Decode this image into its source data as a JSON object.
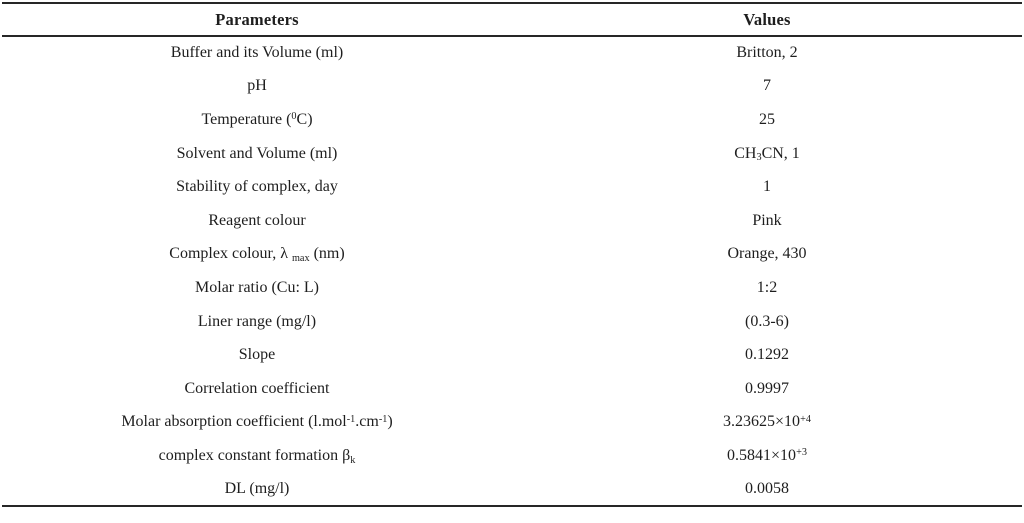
{
  "table": {
    "headers": {
      "param": "Parameters",
      "value": "Values"
    },
    "rows": [
      {
        "param": [
          {
            "t": "Buffer and its Volume (ml)"
          }
        ],
        "value": [
          {
            "t": "Britton, 2"
          }
        ]
      },
      {
        "param": [
          {
            "t": "pH"
          }
        ],
        "value": [
          {
            "t": "7"
          }
        ]
      },
      {
        "param": [
          {
            "t": "Temperature ("
          },
          {
            "t": "0",
            "s": "sup"
          },
          {
            "t": "C)"
          }
        ],
        "value": [
          {
            "t": "25"
          }
        ]
      },
      {
        "param": [
          {
            "t": "Solvent and Volume (ml)"
          }
        ],
        "value": [
          {
            "t": "CH"
          },
          {
            "t": "3",
            "s": "sub"
          },
          {
            "t": "CN, 1"
          }
        ]
      },
      {
        "param": [
          {
            "t": "Stability of complex, day"
          }
        ],
        "value": [
          {
            "t": "1"
          }
        ]
      },
      {
        "param": [
          {
            "t": "Reagent colour"
          }
        ],
        "value": [
          {
            "t": "Pink"
          }
        ]
      },
      {
        "param": [
          {
            "t": "Complex colour, λ "
          },
          {
            "t": "max",
            "s": "sub"
          },
          {
            "t": " (nm)"
          }
        ],
        "value": [
          {
            "t": "Orange, 430"
          }
        ]
      },
      {
        "param": [
          {
            "t": "Molar ratio (Cu: L)"
          }
        ],
        "value": [
          {
            "t": "1:2"
          }
        ]
      },
      {
        "param": [
          {
            "t": "Liner range (mg/l)"
          }
        ],
        "value": [
          {
            "t": "(0.3-6)"
          }
        ]
      },
      {
        "param": [
          {
            "t": "Slope"
          }
        ],
        "value": [
          {
            "t": "0.1292"
          }
        ]
      },
      {
        "param": [
          {
            "t": "Correlation coefficient"
          }
        ],
        "value": [
          {
            "t": "0.9997"
          }
        ]
      },
      {
        "param": [
          {
            "t": "Molar absorption coefficient (l.mol"
          },
          {
            "t": "-1",
            "s": "sup"
          },
          {
            "t": ".cm"
          },
          {
            "t": "-1",
            "s": "sup"
          },
          {
            "t": ")"
          }
        ],
        "value": [
          {
            "t": "3.23625×10"
          },
          {
            "t": "+4",
            "s": "sup"
          }
        ]
      },
      {
        "param": [
          {
            "t": "complex constant formation β"
          },
          {
            "t": "k",
            "s": "sub"
          }
        ],
        "value": [
          {
            "t": "0.5841×10"
          },
          {
            "t": "+3",
            "s": "sup"
          }
        ]
      },
      {
        "param": [
          {
            "t": "DL (mg/l)"
          }
        ],
        "value": [
          {
            "t": "0.0058"
          }
        ]
      }
    ]
  },
  "colors": {
    "rule": "#262626",
    "text": "#1e1e1e",
    "background": "#ffffff"
  }
}
